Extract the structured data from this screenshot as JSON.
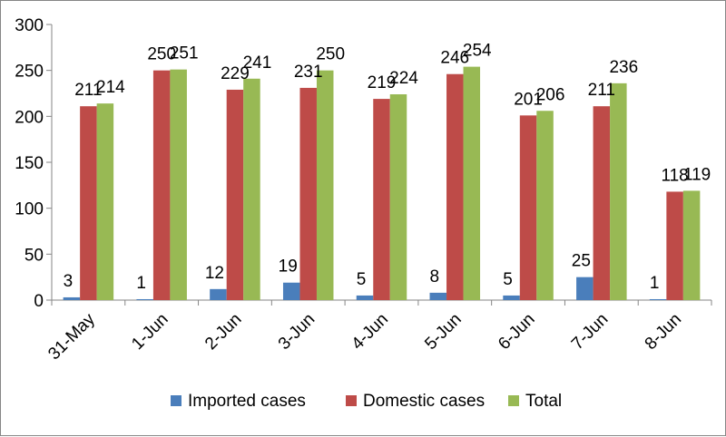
{
  "chart_data": {
    "type": "bar",
    "categories": [
      "31-May",
      "1-Jun",
      "2-Jun",
      "3-Jun",
      "4-Jun",
      "5-Jun",
      "6-Jun",
      "7-Jun",
      "8-Jun"
    ],
    "series": [
      {
        "name": "Imported cases",
        "color": "#4a7ebb",
        "values": [
          3,
          1,
          12,
          19,
          5,
          8,
          5,
          25,
          1
        ]
      },
      {
        "name": "Domestic cases",
        "color": "#be4b48",
        "values": [
          211,
          250,
          229,
          231,
          219,
          246,
          201,
          211,
          118
        ]
      },
      {
        "name": "Total",
        "color": "#98b954",
        "values": [
          214,
          251,
          241,
          250,
          224,
          254,
          206,
          236,
          119
        ]
      }
    ],
    "ylim": [
      0,
      300
    ],
    "yticks": [
      0,
      50,
      100,
      150,
      200,
      250,
      300
    ],
    "legend_position": "bottom",
    "grid": false,
    "data_labels": true
  }
}
